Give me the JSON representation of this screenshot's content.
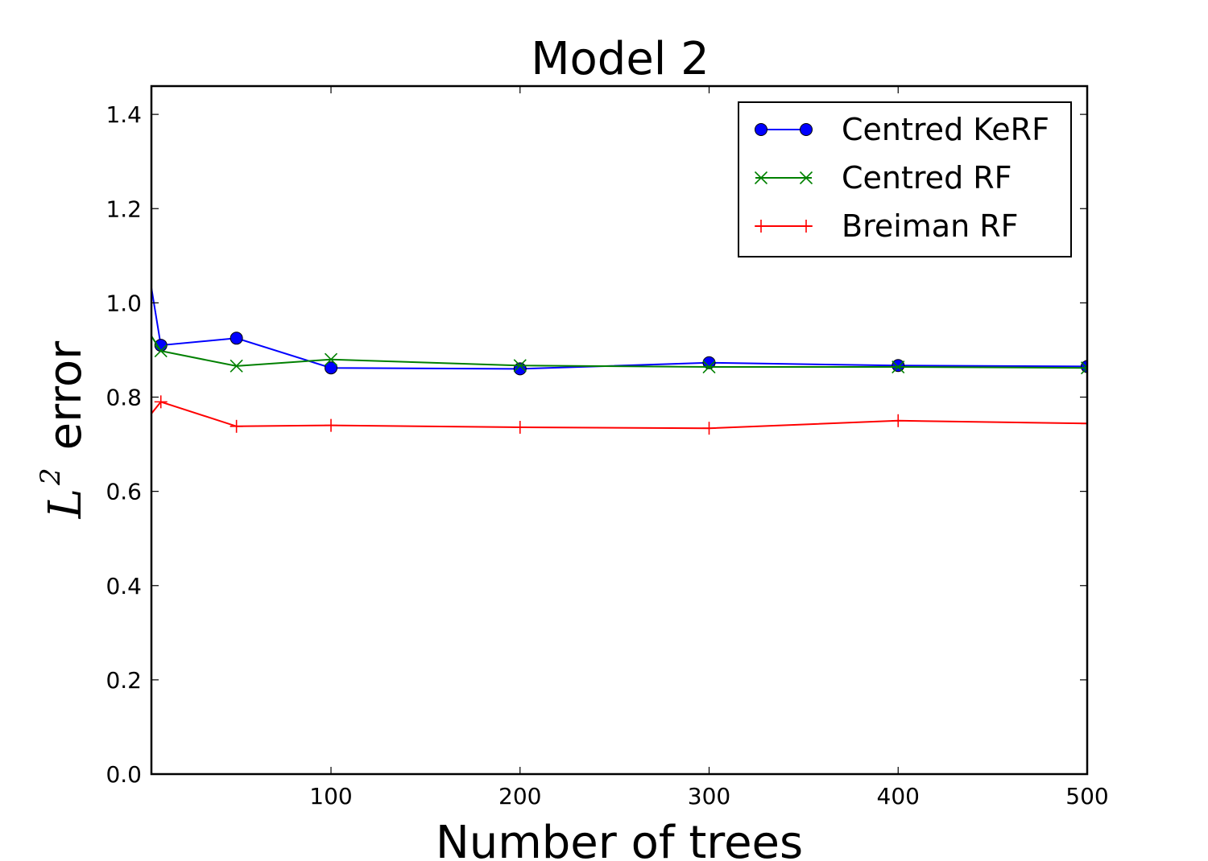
{
  "chart_data": {
    "type": "line",
    "title": "Model 2",
    "xlabel": "Number of trees",
    "ylabel_math": "L",
    "ylabel_sup": "2",
    "ylabel_text": "error",
    "xlim": [
      5,
      500
    ],
    "ylim": [
      0,
      1.46
    ],
    "xticks": [
      100,
      200,
      300,
      400,
      500
    ],
    "yticks": [
      0.0,
      0.2,
      0.4,
      0.6,
      0.8,
      1.0,
      1.2,
      1.4
    ],
    "xtick_labels": [
      "100",
      "200",
      "300",
      "400",
      "500"
    ],
    "ytick_labels": [
      "0.0",
      "0.2",
      "0.4",
      "0.6",
      "0.8",
      "1.0",
      "1.2",
      "1.4"
    ],
    "grid": false,
    "legend_position": "top-right",
    "series": [
      {
        "name": "Centred KeRF",
        "color": "#0000ff",
        "marker": "circle",
        "x": [
          1,
          10,
          50,
          100,
          200,
          300,
          400,
          500
        ],
        "y": [
          1.13,
          0.91,
          0.925,
          0.862,
          0.86,
          0.873,
          0.867,
          0.865
        ]
      },
      {
        "name": "Centred RF",
        "color": "#008000",
        "marker": "x",
        "x": [
          1,
          10,
          50,
          100,
          200,
          300,
          400,
          500
        ],
        "y": [
          0.955,
          0.898,
          0.866,
          0.88,
          0.867,
          0.864,
          0.864,
          0.862
        ]
      },
      {
        "name": "Breiman RF",
        "color": "#ff0000",
        "marker": "plus",
        "x": [
          1,
          10,
          50,
          100,
          200,
          300,
          400,
          500
        ],
        "y": [
          0.745,
          0.79,
          0.738,
          0.74,
          0.736,
          0.734,
          0.75,
          0.744
        ]
      }
    ]
  }
}
